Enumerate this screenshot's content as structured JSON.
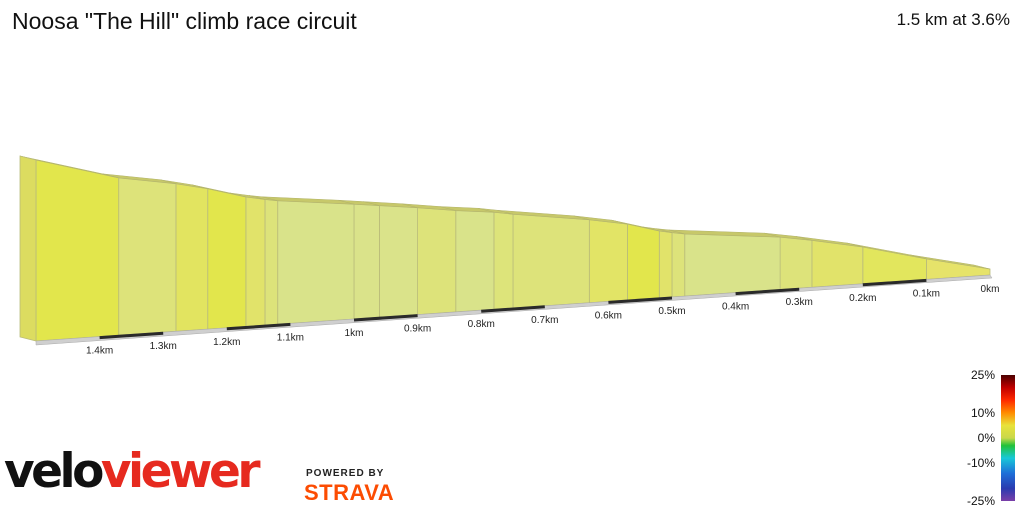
{
  "header": {
    "title": "Noosa \"The Hill\" climb race circuit",
    "summary": "1.5 km at 3.6%"
  },
  "chart_data": {
    "type": "area",
    "distance_unit": "km",
    "distance_km": 1.5,
    "average_gradient_percent": 3.6,
    "x_direction": "right-to-left",
    "distance_ticks": [
      {
        "km": 0,
        "label": "0km"
      },
      {
        "km": 0.1,
        "label": "0.1km"
      },
      {
        "km": 0.2,
        "label": "0.2km"
      },
      {
        "km": 0.3,
        "label": "0.3km"
      },
      {
        "km": 0.4,
        "label": "0.4km"
      },
      {
        "km": 0.5,
        "label": "0.5km"
      },
      {
        "km": 0.6,
        "label": "0.6km"
      },
      {
        "km": 0.7,
        "label": "0.7km"
      },
      {
        "km": 0.8,
        "label": "0.8km"
      },
      {
        "km": 0.9,
        "label": "0.9km"
      },
      {
        "km": 1.0,
        "label": "1km"
      },
      {
        "km": 1.1,
        "label": "1.1km"
      },
      {
        "km": 1.2,
        "label": "1.2km"
      },
      {
        "km": 1.3,
        "label": "1.3km"
      },
      {
        "km": 1.4,
        "label": "1.4km"
      }
    ],
    "segments": [
      {
        "from_km": 0.0,
        "to_km": 0.1,
        "gradient": 4.0,
        "color": "#e6e36a"
      },
      {
        "from_km": 0.1,
        "to_km": 0.2,
        "gradient": 4.5,
        "color": "#e2e65d"
      },
      {
        "from_km": 0.2,
        "to_km": 0.28,
        "gradient": 3.5,
        "color": "#e1e36a"
      },
      {
        "from_km": 0.28,
        "to_km": 0.33,
        "gradient": 3.0,
        "color": "#dde37a"
      },
      {
        "from_km": 0.33,
        "to_km": 0.48,
        "gradient": 1.8,
        "color": "#d9e38a"
      },
      {
        "from_km": 0.48,
        "to_km": 0.5,
        "gradient": 3.0,
        "color": "#dde37a"
      },
      {
        "from_km": 0.5,
        "to_km": 0.52,
        "gradient": 3.5,
        "color": "#e1e36a"
      },
      {
        "from_km": 0.52,
        "to_km": 0.57,
        "gradient": 5.0,
        "color": "#e2e64c"
      },
      {
        "from_km": 0.57,
        "to_km": 0.63,
        "gradient": 3.2,
        "color": "#e2e466"
      },
      {
        "from_km": 0.63,
        "to_km": 0.75,
        "gradient": 2.5,
        "color": "#dde37a"
      },
      {
        "from_km": 0.75,
        "to_km": 0.78,
        "gradient": 3.0,
        "color": "#dde47a"
      },
      {
        "from_km": 0.78,
        "to_km": 0.84,
        "gradient": 2.0,
        "color": "#d9e38a"
      },
      {
        "from_km": 0.84,
        "to_km": 0.9,
        "gradient": 2.5,
        "color": "#dde37a"
      },
      {
        "from_km": 0.9,
        "to_km": 0.96,
        "gradient": 2.2,
        "color": "#dae38a"
      },
      {
        "from_km": 1.0,
        "to_km": 1.12,
        "gradient": 2.0,
        "color": "#d9e38a"
      },
      {
        "from_km": 0.96,
        "to_km": 1.0,
        "gradient": 2.2,
        "color": "#dae38a"
      },
      {
        "from_km": 1.12,
        "to_km": 1.14,
        "gradient": 3.0,
        "color": "#dde37a"
      },
      {
        "from_km": 1.14,
        "to_km": 1.17,
        "gradient": 3.5,
        "color": "#e1e36a"
      },
      {
        "from_km": 1.17,
        "to_km": 1.23,
        "gradient": 5.0,
        "color": "#e2e64c"
      },
      {
        "from_km": 1.23,
        "to_km": 1.28,
        "gradient": 4.0,
        "color": "#e2e460"
      },
      {
        "from_km": 1.28,
        "to_km": 1.37,
        "gradient": 3.0,
        "color": "#dde37a"
      },
      {
        "from_km": 1.37,
        "to_km": 1.5,
        "gradient": 5.0,
        "color": "#e2e64c"
      }
    ]
  },
  "gradient_scale": {
    "ticks": [
      "25%",
      "10%",
      "0%",
      "-10%",
      "-25%"
    ],
    "stops": [
      {
        "percent": 25,
        "color": "#4b0000"
      },
      {
        "percent": 20,
        "color": "#c00000"
      },
      {
        "percent": 15,
        "color": "#ff2a00"
      },
      {
        "percent": 10,
        "color": "#ff8c00"
      },
      {
        "percent": 5,
        "color": "#e8e23a"
      },
      {
        "percent": 0,
        "color": "#c9d84a"
      },
      {
        "percent": -3,
        "color": "#22c23a"
      },
      {
        "percent": -8,
        "color": "#18c8d8"
      },
      {
        "percent": -14,
        "color": "#1e6fd8"
      },
      {
        "percent": -20,
        "color": "#2a3bb0"
      },
      {
        "percent": -25,
        "color": "#7a3fa8"
      }
    ]
  },
  "branding": {
    "logo_part1": "velo",
    "logo_part2": "viewer",
    "powered_by": "POWERED BY",
    "strava": "STRAVA"
  }
}
